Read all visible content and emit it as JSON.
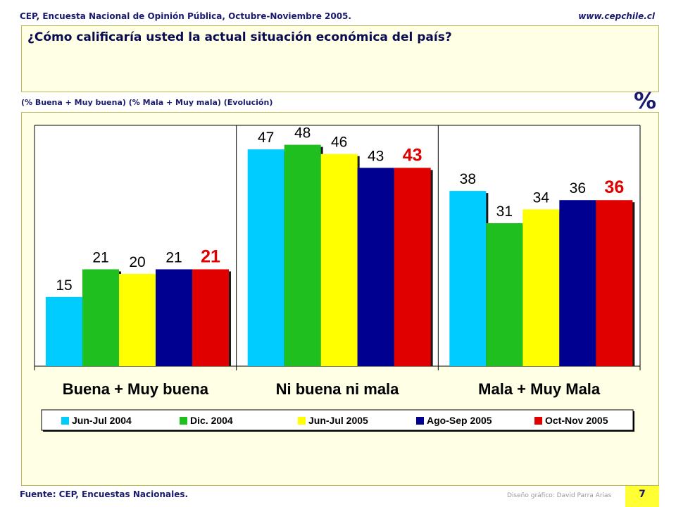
{
  "header": {
    "left": "CEP, Encuesta Nacional de Opinión Pública, Octubre-Noviembre 2005.",
    "right": "www.cepchile.cl"
  },
  "question": "¿Cómo calificaría usted la actual situación económica del país?",
  "subtitle": "(% Buena + Muy buena)  (% Mala + Muy mala)  (Evolución)",
  "percent_symbol": "%",
  "footer": {
    "source": "Fuente: CEP, Encuestas Nacionales.",
    "credit": "Diseño gráfico: David Parra Arias",
    "page": "7"
  },
  "colors": {
    "accent_box": "#ffffe6",
    "box_border": "#b9b95a",
    "page_box": "#ffff33",
    "highlight_label": "#e00000"
  },
  "chart_data": {
    "type": "bar",
    "categories": [
      "Buena + Muy buena",
      "Ni buena ni mala",
      "Mala + Muy Mala"
    ],
    "series": [
      {
        "name": "Jun-Jul 2004",
        "color": "#00ccff",
        "values": [
          15,
          47,
          38
        ]
      },
      {
        "name": "Dic. 2004",
        "color": "#1fbf1f",
        "values": [
          21,
          48,
          31
        ]
      },
      {
        "name": "Jun-Jul 2005",
        "color": "#ffff00",
        "values": [
          20,
          46,
          34
        ]
      },
      {
        "name": "Ago-Sep 2005",
        "color": "#000090",
        "values": [
          21,
          43,
          36
        ]
      },
      {
        "name": "Oct-Nov 2005",
        "color": "#e00000",
        "values": [
          21,
          43,
          36
        ]
      }
    ],
    "ylim": [
      0,
      60
    ],
    "grid": false,
    "legend_placement": "bottom"
  }
}
